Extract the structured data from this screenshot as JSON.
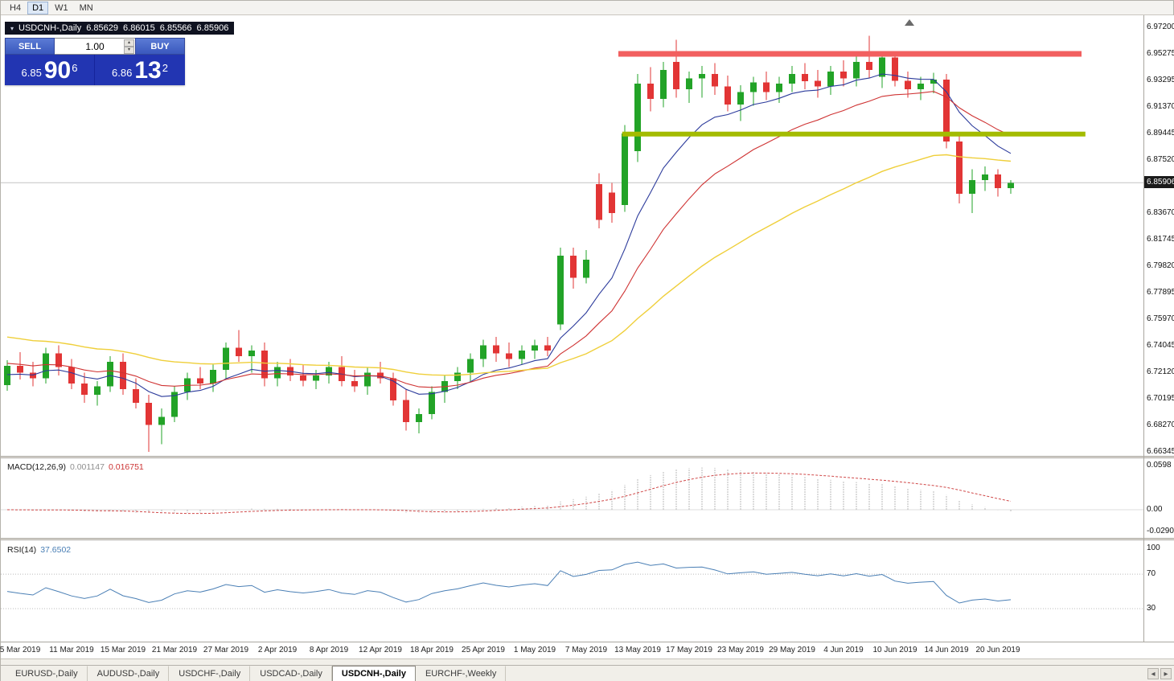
{
  "toolbar": {
    "timeframes": [
      {
        "label": "H4",
        "active": false
      },
      {
        "label": "D1",
        "active": true
      },
      {
        "label": "W1",
        "active": false
      },
      {
        "label": "MN",
        "active": false
      }
    ]
  },
  "icons": {
    "collapse": "▾",
    "spinner_up": "▴",
    "spinner_down": "▾",
    "tab_scroll_left": "◂",
    "tab_scroll_right": "▸",
    "chart_shift": "▲"
  },
  "chart": {
    "header": {
      "symbol": "USDCNH-,Daily",
      "open": "6.85629",
      "high": "6.86015",
      "low": "6.85566",
      "close": "6.85906"
    },
    "trade_panel": {
      "sell_label": "SELL",
      "buy_label": "BUY",
      "volume": "1.00",
      "sell_price": {
        "prefix": "6.85",
        "big": "90",
        "sup": "6"
      },
      "buy_price": {
        "prefix": "6.86",
        "big": "13",
        "sup": "2"
      }
    },
    "price_axis": {
      "labels": [
        "6.97200",
        "6.95275",
        "6.93295",
        "6.91370",
        "6.89445",
        "6.87520",
        "6.83670",
        "6.81745",
        "6.79820",
        "6.77895",
        "6.75970",
        "6.74045",
        "6.72120",
        "6.70195",
        "6.68270",
        "6.66345"
      ],
      "current": "6.85906"
    }
  },
  "macd_panel": {
    "label": "MACD(12,26,9)",
    "value": "0.001147",
    "signal": "0.016751",
    "axis": [
      "0.0598",
      "0.00",
      "-0.029049"
    ]
  },
  "rsi_panel": {
    "label": "RSI(14)",
    "value": "37.6502",
    "axis": [
      "100",
      "70",
      "30"
    ]
  },
  "date_axis": [
    {
      "i": 1,
      "label": "5 Mar 2019"
    },
    {
      "i": 5,
      "label": "11 Mar 2019"
    },
    {
      "i": 9,
      "label": "15 Mar 2019"
    },
    {
      "i": 13,
      "label": "21 Mar 2019"
    },
    {
      "i": 17,
      "label": "27 Mar 2019"
    },
    {
      "i": 21,
      "label": "2 Apr 2019"
    },
    {
      "i": 25,
      "label": "8 Apr 2019"
    },
    {
      "i": 29,
      "label": "12 Apr 2019"
    },
    {
      "i": 33,
      "label": "18 Apr 2019"
    },
    {
      "i": 37,
      "label": "25 Apr 2019"
    },
    {
      "i": 41,
      "label": "1 May 2019"
    },
    {
      "i": 45,
      "label": "7 May 2019"
    },
    {
      "i": 49,
      "label": "13 May 2019"
    },
    {
      "i": 53,
      "label": "17 May 2019"
    },
    {
      "i": 57,
      "label": "23 May 2019"
    },
    {
      "i": 61,
      "label": "29 May 2019"
    },
    {
      "i": 65,
      "label": "4 Jun 2019"
    },
    {
      "i": 69,
      "label": "10 Jun 2019"
    },
    {
      "i": 73,
      "label": "14 Jun 2019"
    },
    {
      "i": 77,
      "label": "20 Jun 2019"
    }
  ],
  "tabs": [
    {
      "label": "EURUSD-,Daily",
      "active": false
    },
    {
      "label": "AUDUSD-,Daily",
      "active": false
    },
    {
      "label": "USDCHF-,Daily",
      "active": false
    },
    {
      "label": "USDCAD-,Daily",
      "active": false
    },
    {
      "label": "USDCNH-,Daily",
      "active": true
    },
    {
      "label": "EURCHF-,Weekly",
      "active": false
    }
  ],
  "colors": {
    "bull": "#22a327",
    "bear": "#e23535",
    "resistance": "#f25f5f",
    "support": "#a3bb00",
    "bid_line": "#c4c4c4",
    "ma_fast": "#2b3a9b",
    "ma_medium": "#cf3333",
    "ma_slow": "#efcf3a",
    "macd_histogram": "#b9b9b9",
    "macd_signal": "#d04848",
    "rsi_line": "#4a7fb5"
  },
  "chart_data": {
    "type": "candlestick",
    "title": "USDCNH-,Daily",
    "price_range": [
      6.66345,
      6.972
    ],
    "current_bid": 6.85906,
    "candles": [
      [
        6.712,
        6.73,
        6.708,
        6.726
      ],
      [
        6.726,
        6.736,
        6.716,
        6.721
      ],
      [
        6.721,
        6.729,
        6.711,
        6.717
      ],
      [
        6.717,
        6.739,
        6.713,
        6.735
      ],
      [
        6.735,
        6.741,
        6.719,
        6.725
      ],
      [
        6.725,
        6.731,
        6.709,
        6.713
      ],
      [
        6.713,
        6.721,
        6.699,
        6.705
      ],
      [
        6.705,
        6.715,
        6.697,
        6.711
      ],
      [
        6.711,
        6.733,
        6.707,
        6.729
      ],
      [
        6.729,
        6.735,
        6.705,
        6.709
      ],
      [
        6.709,
        6.717,
        6.695,
        6.699
      ],
      [
        6.699,
        6.705,
        6.6634,
        6.683
      ],
      [
        6.683,
        6.695,
        6.669,
        6.689
      ],
      [
        6.689,
        6.711,
        6.685,
        6.707
      ],
      [
        6.707,
        6.721,
        6.701,
        6.717
      ],
      [
        6.717,
        6.725,
        6.709,
        6.713
      ],
      [
        6.713,
        6.727,
        6.707,
        6.723
      ],
      [
        6.723,
        6.743,
        6.717,
        6.739
      ],
      [
        6.739,
        6.752,
        6.729,
        6.733
      ],
      [
        6.733,
        6.741,
        6.721,
        6.737
      ],
      [
        6.737,
        6.743,
        6.711,
        6.717
      ],
      [
        6.717,
        6.729,
        6.711,
        6.725
      ],
      [
        6.725,
        6.731,
        6.715,
        6.719
      ],
      [
        6.719,
        6.727,
        6.711,
        6.715
      ],
      [
        6.715,
        6.723,
        6.709,
        6.719
      ],
      [
        6.719,
        6.729,
        6.713,
        6.725
      ],
      [
        6.725,
        6.733,
        6.711,
        6.715
      ],
      [
        6.715,
        6.723,
        6.707,
        6.711
      ],
      [
        6.711,
        6.725,
        6.705,
        6.721
      ],
      [
        6.721,
        6.729,
        6.713,
        6.717
      ],
      [
        6.717,
        6.721,
        6.697,
        6.701
      ],
      [
        6.701,
        6.709,
        6.679,
        6.685
      ],
      [
        6.685,
        6.695,
        6.677,
        6.691
      ],
      [
        6.691,
        6.711,
        6.687,
        6.707
      ],
      [
        6.707,
        6.719,
        6.699,
        6.715
      ],
      [
        6.715,
        6.725,
        6.709,
        6.721
      ],
      [
        6.721,
        6.735,
        6.715,
        6.731
      ],
      [
        6.731,
        6.745,
        6.725,
        6.741
      ],
      [
        6.741,
        6.747,
        6.729,
        6.735
      ],
      [
        6.735,
        6.743,
        6.725,
        6.731
      ],
      [
        6.731,
        6.741,
        6.727,
        6.737
      ],
      [
        6.737,
        6.745,
        6.731,
        6.741
      ],
      [
        6.741,
        6.747,
        6.733,
        6.737
      ],
      [
        6.756,
        6.812,
        6.752,
        6.806
      ],
      [
        6.806,
        6.812,
        6.782,
        6.79
      ],
      [
        6.79,
        6.81,
        6.786,
        6.803
      ],
      [
        6.858,
        6.866,
        6.826,
        6.832
      ],
      [
        6.852,
        6.859,
        6.83,
        6.837
      ],
      [
        6.843,
        6.901,
        6.838,
        6.895
      ],
      [
        6.882,
        6.938,
        6.874,
        6.931
      ],
      [
        6.931,
        6.943,
        6.911,
        6.92
      ],
      [
        6.92,
        6.947,
        6.914,
        6.941
      ],
      [
        6.947,
        6.963,
        6.921,
        6.927
      ],
      [
        6.927,
        6.94,
        6.917,
        6.935
      ],
      [
        6.935,
        6.944,
        6.921,
        6.938
      ],
      [
        6.938,
        6.946,
        6.923,
        6.929
      ],
      [
        6.929,
        6.937,
        6.911,
        6.916
      ],
      [
        6.916,
        6.93,
        6.904,
        6.925
      ],
      [
        6.925,
        6.936,
        6.915,
        6.932
      ],
      [
        6.932,
        6.94,
        6.919,
        6.925
      ],
      [
        6.925,
        6.936,
        6.917,
        6.931
      ],
      [
        6.931,
        6.944,
        6.925,
        6.938
      ],
      [
        6.938,
        6.946,
        6.927,
        6.933
      ],
      [
        6.933,
        6.941,
        6.921,
        6.929
      ],
      [
        6.929,
        6.944,
        6.923,
        6.94
      ],
      [
        6.94,
        6.948,
        6.929,
        6.935
      ],
      [
        6.935,
        6.952,
        6.929,
        6.947
      ],
      [
        6.947,
        6.966,
        6.935,
        6.941
      ],
      [
        6.936,
        6.954,
        6.928,
        6.95
      ],
      [
        6.95,
        6.952,
        6.929,
        6.933
      ],
      [
        6.933,
        6.94,
        6.921,
        6.927
      ],
      [
        6.927,
        6.936,
        6.919,
        6.931
      ],
      [
        6.931,
        6.939,
        6.924,
        6.934
      ],
      [
        6.934,
        6.938,
        6.884,
        6.889
      ],
      [
        6.889,
        6.893,
        6.844,
        6.851
      ],
      [
        6.851,
        6.869,
        6.837,
        6.861
      ],
      [
        6.861,
        6.871,
        6.853,
        6.865
      ],
      [
        6.865,
        6.869,
        6.849,
        6.855
      ],
      [
        6.855,
        6.861,
        6.851,
        6.859
      ]
    ],
    "overlays": {
      "resistance_line": {
        "price": 6.9527,
        "from_index": 47.5,
        "to_index": 83.5,
        "width": 7
      },
      "support_line": {
        "price": 6.8944,
        "from_index": 47.8,
        "to_index": 83.8,
        "width": 6
      },
      "bid_line": {
        "price": 6.85906
      },
      "moving_averages": [
        {
          "name": "fast",
          "estimated_period": 9,
          "seed": 6.718,
          "width": 1.1
        },
        {
          "name": "medium",
          "estimated_period": 17,
          "seed": 6.728,
          "width": 1.1
        },
        {
          "name": "slow",
          "estimated_period": 40,
          "seed": 6.748,
          "width": 1.4
        }
      ]
    },
    "indicators": {
      "macd": {
        "params": [
          12,
          26,
          9
        ],
        "value": 0.001147,
        "signal": 0.016751,
        "axis_max": 0.0598,
        "axis_min": -0.029049
      },
      "rsi": {
        "period": 14,
        "value": 37.6502,
        "levels": [
          70,
          30
        ],
        "range": [
          0,
          100
        ]
      }
    }
  }
}
